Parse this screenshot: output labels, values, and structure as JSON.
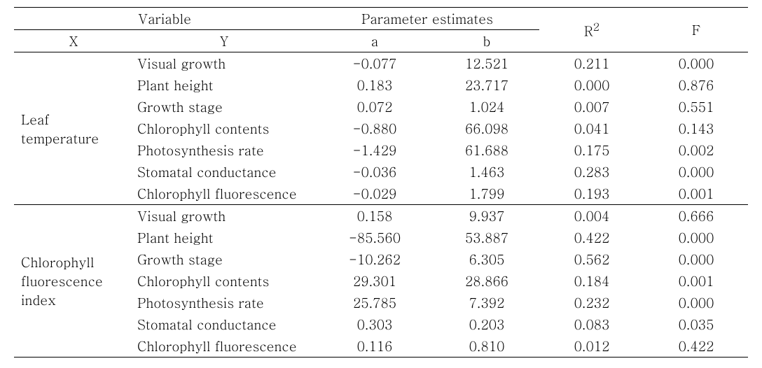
{
  "header": {
    "variable": "Variable",
    "x": "X",
    "y": "Y",
    "param": "Parameter estimates",
    "a": "a",
    "b": "b",
    "r2": "R",
    "r2_sup": "2",
    "f": "F"
  },
  "groups": [
    {
      "x_label": "Leaf temperature",
      "row_count": 7,
      "rows": [
        {
          "y": "Visual growth",
          "a": "-0.077",
          "b": "12.521",
          "r2": "0.211",
          "f": "0.000"
        },
        {
          "y": "Plant height",
          "a": "0.183",
          "b": "23.717",
          "r2": "0.000",
          "f": "0.876"
        },
        {
          "y": "Growth stage",
          "a": "0.072",
          "b": "1.024",
          "r2": "0.007",
          "f": "0.551"
        },
        {
          "y": "Chlorophyll contents",
          "a": "-0.880",
          "b": "66.098",
          "r2": "0.041",
          "f": "0.143"
        },
        {
          "y": "Photosynthesis rate",
          "a": "-1.429",
          "b": "61.688",
          "r2": "0.175",
          "f": "0.002"
        },
        {
          "y": "Stomatal conductance",
          "a": "-0.036",
          "b": "1.463",
          "r2": "0.283",
          "f": "0.000"
        },
        {
          "y": "Chlorophyll fluorescence",
          "a": "-0.029",
          "b": "1.799",
          "r2": "0.193",
          "f": "0.001"
        }
      ]
    },
    {
      "x_label": "Chlorophyll fluorescence index",
      "row_count": 7,
      "rows": [
        {
          "y": "Visual growth",
          "a": "0.158",
          "b": "9.937",
          "r2": "0.004",
          "f": "0.666"
        },
        {
          "y": "Plant height",
          "a": "-85.560",
          "b": "53.887",
          "r2": "0.422",
          "f": "0.000"
        },
        {
          "y": "Growth stage",
          "a": "-10.262",
          "b": "6.305",
          "r2": "0.562",
          "f": "0.000"
        },
        {
          "y": "Chlorophyll contents",
          "a": "29.301",
          "b": "28.866",
          "r2": "0.184",
          "f": "0.001"
        },
        {
          "y": "Photosynthesis rate",
          "a": "25.785",
          "b": "7.392",
          "r2": "0.232",
          "f": "0.000"
        },
        {
          "y": "Stomatal conductance",
          "a": "0.303",
          "b": "0.203",
          "r2": "0.083",
          "f": "0.035"
        },
        {
          "y": "Chlorophyll fluorescence",
          "a": "0.116",
          "b": "0.810",
          "r2": "0.012",
          "f": "0.422"
        }
      ]
    }
  ]
}
